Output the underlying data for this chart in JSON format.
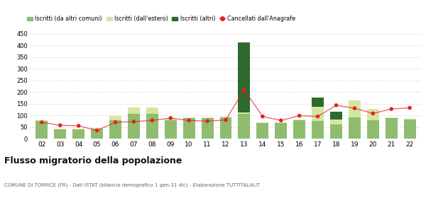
{
  "years": [
    "02",
    "03",
    "04",
    "05",
    "06",
    "07",
    "08",
    "09",
    "10",
    "11",
    "12",
    "13",
    "14",
    "15",
    "16",
    "17",
    "18",
    "19",
    "20",
    "21",
    "22"
  ],
  "iscritti_altri_comuni": [
    75,
    38,
    40,
    43,
    80,
    105,
    105,
    78,
    88,
    88,
    92,
    105,
    68,
    68,
    78,
    75,
    60,
    90,
    78,
    88,
    82
  ],
  "iscritti_estero": [
    3,
    3,
    3,
    3,
    18,
    28,
    28,
    8,
    3,
    3,
    3,
    8,
    3,
    3,
    3,
    60,
    22,
    75,
    50,
    3,
    3
  ],
  "iscritti_altri": [
    0,
    0,
    0,
    0,
    0,
    0,
    0,
    0,
    0,
    0,
    0,
    300,
    0,
    0,
    0,
    42,
    32,
    0,
    0,
    0,
    0
  ],
  "cancellati": [
    70,
    57,
    55,
    35,
    70,
    73,
    78,
    88,
    78,
    75,
    80,
    210,
    95,
    78,
    98,
    95,
    143,
    130,
    108,
    127,
    132
  ],
  "color_altri_comuni": "#8fbc6e",
  "color_estero": "#d4e6a0",
  "color_altri": "#2d6a2d",
  "color_cancellati": "#e82020",
  "ylim": [
    0,
    450
  ],
  "yticks": [
    0,
    50,
    100,
    150,
    200,
    250,
    300,
    350,
    400,
    450
  ],
  "title": "Flusso migratorio della popolazione",
  "subtitle": "COMUNE DI TORRICE (FR) - Dati ISTAT (bilancio demografico 1 gen-31 dic) - Elaborazione TUTTITALIA.IT",
  "legend_labels": [
    "Iscritti (da altri comuni)",
    "Iscritti (dall'estero)",
    "Iscritti (altri)",
    "Cancellati dall'Anagrafe"
  ],
  "bg_color": "#ffffff",
  "grid_color": "#cccccc"
}
